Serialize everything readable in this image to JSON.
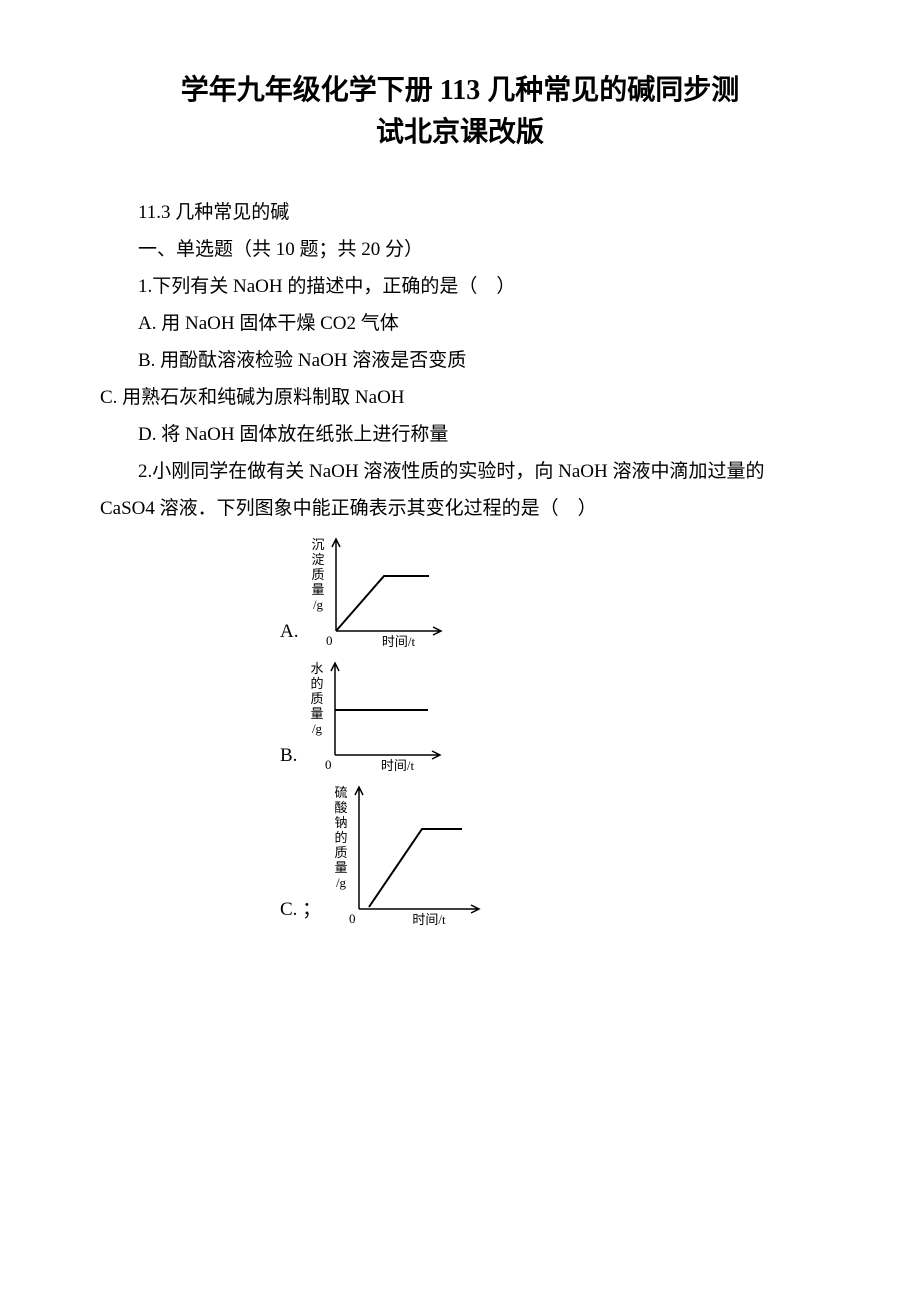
{
  "title": {
    "line1": "学年九年级化学下册 113 几种常见的碱同步测",
    "line2": "试北京课改版"
  },
  "section_header": "11.3 几种常见的碱",
  "part_header": "一、单选题（共 10 题；共 20 分）",
  "q1": {
    "stem": "1.下列有关 NaOH 的描述中，正确的是（　）",
    "a": "A. 用 NaOH 固体干燥 CO2 气体",
    "b": "B. 用酚酞溶液检验 NaOH 溶液是否变质",
    "c": "C. 用熟石灰和纯碱为原料制取 NaOH",
    "d": "D. 将 NaOH 固体放在纸张上进行称量"
  },
  "q2": {
    "stem": "2.小刚同学在做有关 NaOH 溶液性质的实验时，向 NaOH 溶液中滴加过量的 CaSO4 溶液．下列图象中能正确表示其变化过程的是（　）",
    "options": {
      "a": "A.",
      "b": "B.",
      "c": "C. ；"
    }
  },
  "chart_a": {
    "width": 145,
    "height": 120,
    "y_label_lines": [
      "沉",
      "淀",
      "质",
      "量"
    ],
    "y_unit": "/g",
    "x_label": "时间/t",
    "origin_label": "0",
    "axis_color": "#000000",
    "line_color": "#000000",
    "bg_color": "#ffffff",
    "line_points": [
      [
        32,
        100
      ],
      [
        80,
        45
      ],
      [
        125,
        45
      ]
    ],
    "line_width": 2,
    "font_size": 13
  },
  "chart_b": {
    "width": 145,
    "height": 120,
    "y_label_lines": [
      "水",
      "的",
      "质",
      "量"
    ],
    "y_unit": "/g",
    "x_label": "时间/t",
    "origin_label": "0",
    "axis_color": "#000000",
    "line_color": "#000000",
    "bg_color": "#ffffff",
    "line_points": [
      [
        32,
        55
      ],
      [
        125,
        55
      ]
    ],
    "line_width": 2,
    "font_size": 13
  },
  "chart_c": {
    "width": 160,
    "height": 150,
    "y_label_lines": [
      "硫",
      "酸",
      "钠",
      "的",
      "质",
      "量"
    ],
    "y_unit": "/g",
    "x_label": "时间/t",
    "origin_label": "0",
    "axis_color": "#000000",
    "line_color": "#000000",
    "bg_color": "#ffffff",
    "line_points": [
      [
        42,
        128
      ],
      [
        95,
        50
      ],
      [
        135,
        50
      ]
    ],
    "line_width": 2,
    "font_size": 13
  }
}
